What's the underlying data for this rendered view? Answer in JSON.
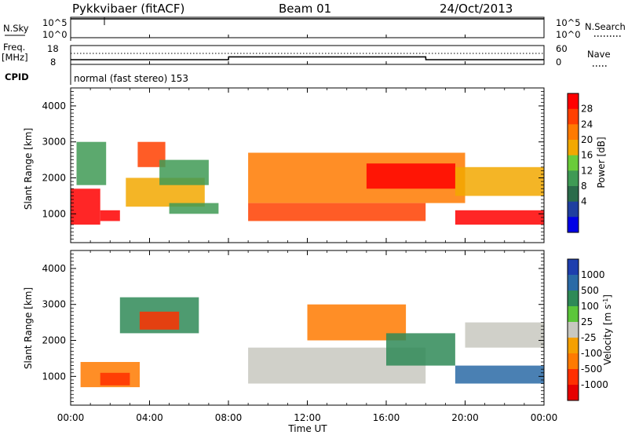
{
  "header": {
    "station": "Pykkvibaer (fitACF)",
    "beam": "Beam 01",
    "date": "24/Oct/2013"
  },
  "panels": {
    "nsky": {
      "label": "N.Sky",
      "ticks": [
        "10^5",
        "10^0"
      ],
      "right_label": "N.Search",
      "right_ticks": [
        "10^5",
        "10^0"
      ]
    },
    "freq": {
      "label_top": "Freq.",
      "label_bottom": "[MHz]",
      "ticks": [
        "18",
        "8"
      ],
      "right_label": "Nave",
      "right_ticks": [
        "60",
        "0"
      ]
    },
    "cpid": {
      "label": "CPID",
      "text": "normal (fast stereo) 153"
    },
    "power": {
      "ylabel": "Slant Range [km]",
      "yticks": [
        "4000",
        "3000",
        "2000",
        "1000"
      ],
      "colorbar_label": "Power [dB]",
      "colorbar_ticks": [
        "28",
        "24",
        "20",
        "16",
        "12",
        "8",
        "4"
      ],
      "colors": [
        "#0000e6",
        "#1f3fa0",
        "#2a6b4a",
        "#3f9a55",
        "#6acc3a",
        "#f2a800",
        "#ff7a00",
        "#ff4000",
        "#ff0000"
      ]
    },
    "velocity": {
      "ylabel": "Slant Range [km]",
      "yticks": [
        "4000",
        "3000",
        "2000",
        "1000"
      ],
      "colorbar_label": "Velocity [m s",
      "colorbar_sup": "-1",
      "colorbar_label_end": "]",
      "colorbar_ticks": [
        "1000",
        "500",
        "100",
        "25",
        "-25",
        "-100",
        "-500",
        "-1000"
      ],
      "colors": [
        "#1e3fae",
        "#2a6aa6",
        "#2f8a57",
        "#5cc63a",
        "#c8c8c0",
        "#f5a000",
        "#ff7a00",
        "#ff3000",
        "#e60000"
      ]
    }
  },
  "xaxis": {
    "label": "Time UT",
    "ticks": [
      "00:00",
      "04:00",
      "08:00",
      "12:00",
      "16:00",
      "20:00",
      "00:00"
    ]
  },
  "chart_data": [
    {
      "type": "line",
      "title": "N.Sky / N.Search",
      "x": [
        0,
        2,
        4,
        6,
        8,
        10,
        12,
        14,
        16,
        18,
        20,
        22,
        24
      ],
      "series": [
        {
          "values": [
            100000,
            100000,
            100000,
            100000,
            100000,
            100000,
            100000,
            100000,
            100000,
            100000,
            100000,
            100000,
            100000
          ]
        }
      ],
      "ylim": [
        1,
        100000
      ]
    },
    {
      "type": "line",
      "title": "Freq. [MHz] / Nave",
      "x": [
        0,
        8,
        8.01,
        18,
        18.01,
        24
      ],
      "series": [
        {
          "values": [
            10.5,
            10.5,
            12,
            12,
            10.5,
            10.5
          ]
        }
      ],
      "ylim": [
        8,
        18
      ]
    },
    {
      "type": "heatmap",
      "title": "Power [dB]",
      "x_range": [
        0,
        24
      ],
      "ylabel": "Slant Range [km]",
      "ylim": [
        200,
        4500
      ],
      "color_scale": [
        4,
        8,
        12,
        16,
        20,
        24,
        28
      ],
      "regions": [
        {
          "t0": 0.0,
          "t1": 1.5,
          "r0": 700,
          "r1": 1700,
          "value": 28
        },
        {
          "t0": 1.5,
          "t1": 2.5,
          "r0": 800,
          "r1": 1100,
          "value": 28
        },
        {
          "t0": 0.3,
          "t1": 1.8,
          "r0": 1800,
          "r1": 3000,
          "value": 8
        },
        {
          "t0": 2.8,
          "t1": 6.8,
          "r0": 1200,
          "r1": 2000,
          "value": 16
        },
        {
          "t0": 3.4,
          "t1": 4.8,
          "r0": 2300,
          "r1": 3000,
          "value": 24
        },
        {
          "t0": 4.5,
          "t1": 7.0,
          "r0": 1800,
          "r1": 2500,
          "value": 8
        },
        {
          "t0": 5.0,
          "t1": 7.5,
          "r0": 1000,
          "r1": 1300,
          "value": 8
        },
        {
          "t0": 9.0,
          "t1": 18.0,
          "r0": 800,
          "r1": 1300,
          "value": 24
        },
        {
          "t0": 9.0,
          "t1": 12.0,
          "r0": 1300,
          "r1": 2700,
          "value": 20
        },
        {
          "t0": 12.0,
          "t1": 20.0,
          "r0": 1300,
          "r1": 2700,
          "value": 20
        },
        {
          "t0": 15.0,
          "t1": 19.5,
          "r0": 1700,
          "r1": 2400,
          "value": 28
        },
        {
          "t0": 19.5,
          "t1": 24.0,
          "r0": 700,
          "r1": 1100,
          "value": 28
        },
        {
          "t0": 19.5,
          "t1": 24.0,
          "r0": 1500,
          "r1": 2300,
          "value": 16
        }
      ]
    },
    {
      "type": "heatmap",
      "title": "Velocity [m s-1]",
      "x_range": [
        0,
        24
      ],
      "ylabel": "Slant Range [km]",
      "ylim": [
        200,
        4500
      ],
      "color_scale": [
        -1000,
        -500,
        -100,
        -25,
        25,
        100,
        500,
        1000
      ],
      "regions": [
        {
          "t0": 0.5,
          "t1": 3.5,
          "r0": 700,
          "r1": 1400,
          "value": -100
        },
        {
          "t0": 1.5,
          "t1": 3.0,
          "r0": 750,
          "r1": 1100,
          "value": -500
        },
        {
          "t0": 2.5,
          "t1": 6.5,
          "r0": 2200,
          "r1": 3200,
          "value": 100
        },
        {
          "t0": 3.5,
          "t1": 5.5,
          "r0": 2300,
          "r1": 2800,
          "value": -500
        },
        {
          "t0": 9.0,
          "t1": 18.0,
          "r0": 800,
          "r1": 1800,
          "value": 0
        },
        {
          "t0": 12.0,
          "t1": 17.0,
          "r0": 2000,
          "r1": 3000,
          "value": -100
        },
        {
          "t0": 16.0,
          "t1": 19.5,
          "r0": 1300,
          "r1": 2200,
          "value": 100
        },
        {
          "t0": 19.5,
          "t1": 24.0,
          "r0": 800,
          "r1": 1300,
          "value": 500
        },
        {
          "t0": 20.0,
          "t1": 24.0,
          "r0": 1800,
          "r1": 2500,
          "value": 0
        }
      ]
    }
  ]
}
